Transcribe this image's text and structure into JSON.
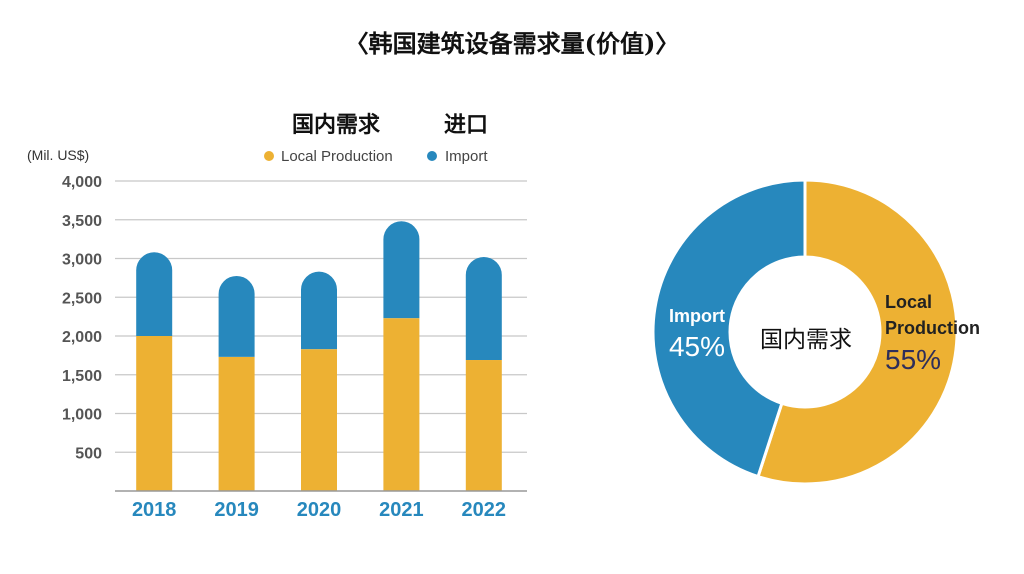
{
  "title": "〈韩国建筑设备需求量(价值)〉",
  "colors": {
    "local": "#edb133",
    "import": "#2788bd",
    "grid": "#c8c8c8",
    "pct_local": "#2e2e5a"
  },
  "chart_data": [
    {
      "type": "bar",
      "stacked": true,
      "unit_label": "(Mil. US$)",
      "legend_position": "top-right",
      "legend": [
        {
          "name_cn": "国内需求",
          "name": "Local Production",
          "color": "#edb133"
        },
        {
          "name_cn": "进口",
          "name": "Import",
          "color": "#2788bd"
        }
      ],
      "categories": [
        "2018",
        "2019",
        "2020",
        "2021",
        "2022"
      ],
      "series": [
        {
          "name": "Local Production",
          "values": [
            2000,
            1730,
            1830,
            2230,
            1690
          ]
        },
        {
          "name": "Import",
          "values": [
            1080,
            1045,
            1000,
            1250,
            1330
          ]
        }
      ],
      "ylim": [
        0,
        4000
      ],
      "yticks": [
        500,
        1000,
        1500,
        2000,
        2500,
        3000,
        3500,
        4000
      ],
      "ytick_labels": [
        "500",
        "1,000",
        "1,500",
        "2,000",
        "2,500",
        "3,000",
        "3,500",
        "4,000"
      ],
      "grid": true
    },
    {
      "type": "pie",
      "donut": true,
      "center_label": "国内需求",
      "slices": [
        {
          "name": "Local Production",
          "label_lines": [
            "Local",
            "Production"
          ],
          "value": 55,
          "pct_label": "55%",
          "color": "#edb133"
        },
        {
          "name": "Import",
          "label_lines": [
            "Import"
          ],
          "value": 45,
          "pct_label": "45%",
          "color": "#2788bd"
        }
      ]
    }
  ]
}
